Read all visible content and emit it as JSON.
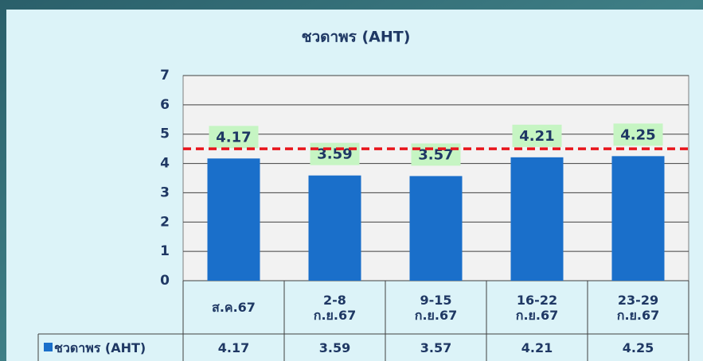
{
  "chart_data": {
    "type": "bar",
    "title": "ชวดาพร (AHT)",
    "categories": [
      "ส.ค.67",
      "2-8\nก.ย.67",
      "9-15\nก.ย.67",
      "16-22\nก.ย.67",
      "23-29\nก.ย.67"
    ],
    "series": [
      {
        "name": "ชวดาพร (AHT)",
        "color": "#1a6fca",
        "values": [
          4.17,
          3.59,
          3.57,
          4.21,
          4.25
        ]
      }
    ],
    "ylim": [
      0,
      7
    ],
    "yticks": [
      0,
      1,
      2,
      3,
      4,
      5,
      6,
      7
    ],
    "grid": true,
    "reference_line": {
      "value": 4.5,
      "color": "#e8141b"
    },
    "data_table": true
  }
}
